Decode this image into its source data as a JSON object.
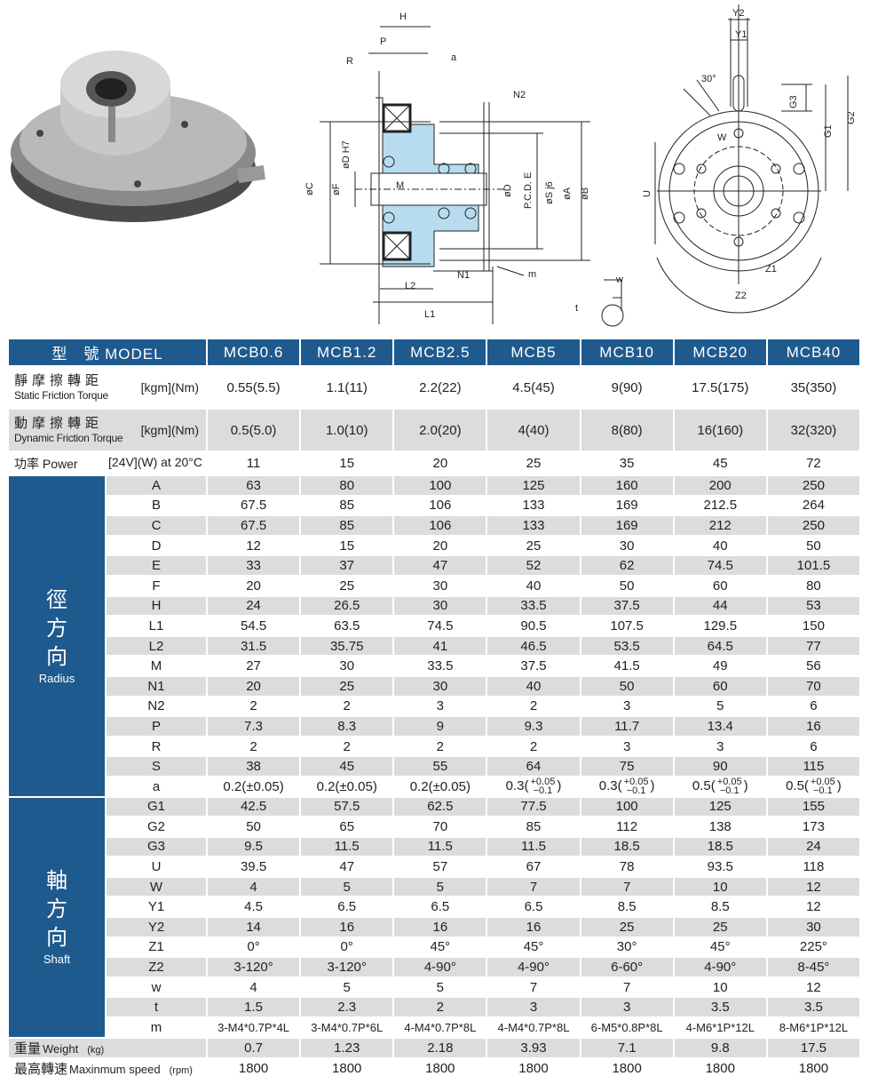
{
  "drawing_labels": {
    "side": {
      "H": "H",
      "P": "P",
      "R": "R",
      "a": "a",
      "N2": "N2",
      "C": "øC",
      "F": "øF",
      "D_H7": "øD H7",
      "M": "M",
      "D": "øD",
      "PCD": "P.C.D. E",
      "S": "øS j6",
      "A": "øA",
      "B": "øB",
      "m": "m",
      "N1": "N1",
      "L2": "L2",
      "L1": "L1",
      "w": "w",
      "t": "t"
    },
    "end": {
      "Y2": "Y2",
      "Y1": "Y1",
      "angle": "30°",
      "G3": "G3",
      "G1": "G1",
      "G2": "G2",
      "W": "W",
      "U": "U",
      "Z1": "Z1",
      "Z2": "Z2"
    }
  },
  "colors": {
    "header_blue": "#1f5a8e",
    "row_gray": "#dcdcdc",
    "section_blue": "#b8dcef"
  },
  "table": {
    "model_label": "型　號 MODEL",
    "models": [
      "MCB0.6",
      "MCB1.2",
      "MCB2.5",
      "MCB5",
      "MCB10",
      "MCB20",
      "MCB40"
    ],
    "static": {
      "zh": "靜摩擦轉距",
      "en": "Static Friction Torque",
      "unit": "[kgm](Nm)",
      "values": [
        "0.55(5.5)",
        "1.1(11)",
        "2.2(22)",
        "4.5(45)",
        "9(90)",
        "17.5(175)",
        "35(350)"
      ]
    },
    "dynamic": {
      "zh": "動摩擦轉距",
      "en": "Dynamic Friction Torque",
      "unit": "[kgm](Nm)",
      "values": [
        "0.5(5.0)",
        "1.0(10)",
        "2.0(20)",
        "4(40)",
        "8(80)",
        "16(160)",
        "32(320)"
      ]
    },
    "power": {
      "label": "功率 Power",
      "unit": "[24V](W) at 20°C",
      "values": [
        "11",
        "15",
        "20",
        "25",
        "35",
        "45",
        "72"
      ]
    },
    "radius": {
      "zh": [
        "徑",
        "方",
        "向"
      ],
      "en": "Radius",
      "rows": [
        {
          "key": "A",
          "values": [
            "63",
            "80",
            "100",
            "125",
            "160",
            "200",
            "250"
          ]
        },
        {
          "key": "B",
          "values": [
            "67.5",
            "85",
            "106",
            "133",
            "169",
            "212.5",
            "264"
          ]
        },
        {
          "key": "C",
          "values": [
            "67.5",
            "85",
            "106",
            "133",
            "169",
            "212",
            "250"
          ]
        },
        {
          "key": "D",
          "values": [
            "12",
            "15",
            "20",
            "25",
            "30",
            "40",
            "50"
          ]
        },
        {
          "key": "E",
          "values": [
            "33",
            "37",
            "47",
            "52",
            "62",
            "74.5",
            "101.5"
          ]
        },
        {
          "key": "F",
          "values": [
            "20",
            "25",
            "30",
            "40",
            "50",
            "60",
            "80"
          ]
        },
        {
          "key": "H",
          "values": [
            "24",
            "26.5",
            "30",
            "33.5",
            "37.5",
            "44",
            "53"
          ]
        },
        {
          "key": "L1",
          "values": [
            "54.5",
            "63.5",
            "74.5",
            "90.5",
            "107.5",
            "129.5",
            "150"
          ]
        },
        {
          "key": "L2",
          "values": [
            "31.5",
            "35.75",
            "41",
            "46.5",
            "53.5",
            "64.5",
            "77"
          ]
        },
        {
          "key": "M",
          "values": [
            "27",
            "30",
            "33.5",
            "37.5",
            "41.5",
            "49",
            "56"
          ]
        },
        {
          "key": "N1",
          "values": [
            "20",
            "25",
            "30",
            "40",
            "50",
            "60",
            "70"
          ]
        },
        {
          "key": "N2",
          "values": [
            "2",
            "2",
            "3",
            "2",
            "3",
            "5",
            "6"
          ]
        },
        {
          "key": "P",
          "values": [
            "7.3",
            "8.3",
            "9",
            "9.3",
            "11.7",
            "13.4",
            "16"
          ]
        },
        {
          "key": "R",
          "values": [
            "2",
            "2",
            "2",
            "2",
            "3",
            "3",
            "6"
          ]
        },
        {
          "key": "S",
          "values": [
            "38",
            "45",
            "55",
            "64",
            "75",
            "90",
            "115"
          ]
        }
      ],
      "a_row": {
        "key": "a",
        "values": [
          {
            "base": "0.2(",
            "sym": "±0.05",
            "close": ")"
          },
          {
            "base": "0.2(",
            "sym": "±0.05",
            "close": ")"
          },
          {
            "base": "0.2(",
            "sym": "±0.05",
            "close": ")"
          },
          {
            "base": "0.3(",
            "upper": "+0.05",
            "lower": "−0.1",
            "close": ")"
          },
          {
            "base": "0.3(",
            "upper": "+0.05",
            "lower": "−0.1",
            "close": ")"
          },
          {
            "base": "0.5(",
            "upper": "+0.05",
            "lower": "−0.1",
            "close": ")"
          },
          {
            "base": "0.5(",
            "upper": "+0.05",
            "lower": "−0.1",
            "close": ")"
          }
        ]
      }
    },
    "shaft": {
      "zh": [
        "軸",
        "方",
        "向"
      ],
      "en": "Shaft",
      "rows": [
        {
          "key": "G1",
          "values": [
            "42.5",
            "57.5",
            "62.5",
            "77.5",
            "100",
            "125",
            "155"
          ]
        },
        {
          "key": "G2",
          "values": [
            "50",
            "65",
            "70",
            "85",
            "112",
            "138",
            "173"
          ]
        },
        {
          "key": "G3",
          "values": [
            "9.5",
            "11.5",
            "11.5",
            "11.5",
            "18.5",
            "18.5",
            "24"
          ]
        },
        {
          "key": "U",
          "values": [
            "39.5",
            "47",
            "57",
            "67",
            "78",
            "93.5",
            "118"
          ]
        },
        {
          "key": "W",
          "values": [
            "4",
            "5",
            "5",
            "7",
            "7",
            "10",
            "12"
          ]
        },
        {
          "key": "Y1",
          "values": [
            "4.5",
            "6.5",
            "6.5",
            "6.5",
            "8.5",
            "8.5",
            "12"
          ]
        },
        {
          "key": "Y2",
          "values": [
            "14",
            "16",
            "16",
            "16",
            "25",
            "25",
            "30"
          ]
        },
        {
          "key": "Z1",
          "values": [
            "0°",
            "0°",
            "45°",
            "45°",
            "30°",
            "45°",
            "225°"
          ]
        },
        {
          "key": "Z2",
          "values": [
            "3-120°",
            "3-120°",
            "4-90°",
            "4-90°",
            "6-60°",
            "4-90°",
            "8-45°"
          ]
        },
        {
          "key": "w",
          "values": [
            "4",
            "5",
            "5",
            "7",
            "7",
            "10",
            "12"
          ]
        },
        {
          "key": "t",
          "values": [
            "1.5",
            "2.3",
            "2",
            "3",
            "3",
            "3.5",
            "3.5"
          ]
        },
        {
          "key": "m",
          "values": [
            "3-M4*0.7P*4L",
            "3-M4*0.7P*6L",
            "4-M4*0.7P*8L",
            "4-M4*0.7P*8L",
            "6-M5*0.8P*8L",
            "4-M6*1P*12L",
            "8-M6*1P*12L"
          ]
        }
      ]
    },
    "weight": {
      "zh": "重量",
      "en": "Weight",
      "unit": "(kg)",
      "values": [
        "0.7",
        "1.23",
        "2.18",
        "3.93",
        "7.1",
        "9.8",
        "17.5"
      ]
    },
    "speed": {
      "zh": "最高轉速",
      "en": "Maxinmum speed",
      "unit": "(rpm)",
      "values": [
        "1800",
        "1800",
        "1800",
        "1800",
        "1800",
        "1800",
        "1800"
      ]
    }
  }
}
